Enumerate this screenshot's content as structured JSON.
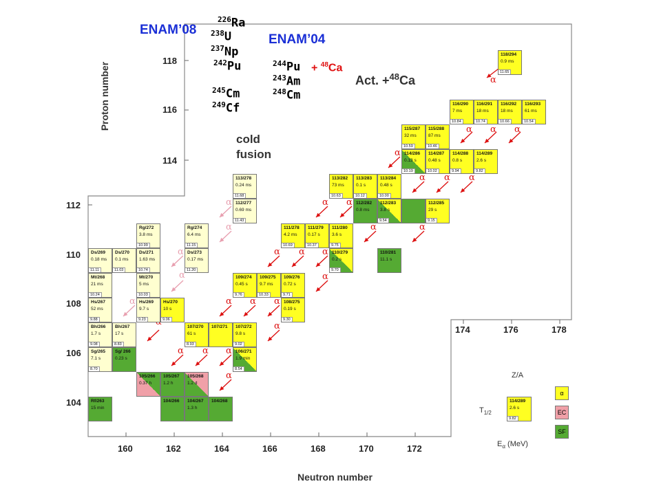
{
  "title_labels": {
    "enam08": "ENAM’08",
    "enam04": "ENAM’04"
  },
  "targets_enam08": [
    {
      "mass": "226",
      "symbol": "Ra"
    },
    {
      "mass": "238",
      "symbol": "U"
    },
    {
      "mass": "237",
      "symbol": "Np"
    },
    {
      "mass": "242",
      "symbol": "Pu"
    },
    {
      "mass": "245",
      "symbol": "Cm"
    },
    {
      "mass": "249",
      "symbol": "Cf"
    }
  ],
  "targets_enam04": [
    {
      "mass": "244",
      "symbol": "Pu"
    },
    {
      "mass": "243",
      "symbol": "Am"
    },
    {
      "mass": "248",
      "symbol": "Cm"
    }
  ],
  "projectile": {
    "prefix": "+ ",
    "mass": "48",
    "symbol": "Ca"
  },
  "act_label": {
    "prefix": "Act. +",
    "mass": "48",
    "symbol": "Ca"
  },
  "cold_fusion": {
    "line1": "cold",
    "line2": "fusion"
  },
  "axes": {
    "ylabel": "Proton number",
    "xlabel": "Neutron number",
    "y_ticks": [
      "104",
      "106",
      "108",
      "110",
      "112",
      "114",
      "116",
      "118"
    ],
    "x_ticks_bottom": [
      "160",
      "162",
      "164",
      "166",
      "168",
      "170",
      "172"
    ],
    "x_ticks_top": [
      "174",
      "176",
      "178"
    ]
  },
  "colors": {
    "alpha": "#ffff22",
    "ec": "#f0a0a8",
    "sf": "#55aa33",
    "cold": "#ffffd0",
    "arrow_red": "#dd1111",
    "arrow_pink": "#e8a0b0"
  },
  "nuclides": [
    {
      "name": "118/294",
      "hl": "0.9 ms",
      "e": "11.65",
      "type": "alpha"
    },
    {
      "name": "116/290",
      "hl": "7 ms",
      "e": "10.84",
      "type": "alpha"
    },
    {
      "name": "116/291",
      "hl": "18 ms",
      "e": "10.74",
      "type": "alpha"
    },
    {
      "name": "116/292",
      "hl": "18 ms",
      "e": "10.66",
      "type": "alpha"
    },
    {
      "name": "116/293",
      "hl": "61 ms",
      "e": "10.54",
      "type": "alpha"
    },
    {
      "name": "115/287",
      "hl": "32 ms",
      "e": "10.59",
      "type": "alpha"
    },
    {
      "name": "115/288",
      "hl": "87 ms",
      "e": "10.46",
      "type": "alpha"
    },
    {
      "name": "114/286",
      "hl": "0.13 s",
      "e": "10.19",
      "type": "alpha-sf"
    },
    {
      "name": "114/287",
      "hl": "0.48 s",
      "e": "10.02",
      "type": "alpha"
    },
    {
      "name": "114/288",
      "hl": "0.8 s",
      "e": "9.94",
      "type": "alpha"
    },
    {
      "name": "114/289",
      "hl": "2.6 s",
      "e": "9.82",
      "type": "alpha"
    },
    {
      "name": "113/278",
      "hl": "0.24 ms",
      "e": "11.68",
      "type": "cold"
    },
    {
      "name": "113/282",
      "hl": "73 ms",
      "e": "10.63",
      "type": "alpha"
    },
    {
      "name": "113/283",
      "hl": "0.1 s",
      "e": "10.12",
      "type": "alpha"
    },
    {
      "name": "113/284",
      "hl": "0.48 s",
      "e": "10.00",
      "type": "alpha"
    },
    {
      "name": "112/277",
      "hl": "0.69 ms",
      "e": "11.43",
      "type": "cold"
    },
    {
      "name": "112/282",
      "hl": "0.8 ms",
      "e": "",
      "type": "sf"
    },
    {
      "name": "112/283",
      "hl": "3.8 s",
      "e": "9.54",
      "type": "alpha-sf"
    },
    {
      "name": "",
      "hl": "",
      "e": "",
      "type": "sf"
    },
    {
      "name": "112/285",
      "hl": "29 s",
      "e": "9.15",
      "type": "alpha"
    },
    {
      "name": "Rg/272",
      "hl": "3.8 ms",
      "e": "10.99",
      "type": "cold"
    },
    {
      "name": "Rg/274",
      "hl": "6.4 ms",
      "e": "11.15",
      "type": "cold"
    },
    {
      "name": "111/278",
      "hl": "4.2 ms",
      "e": "10.69",
      "type": "alpha"
    },
    {
      "name": "111/279",
      "hl": "0.17 s",
      "e": "10.37",
      "type": "alpha"
    },
    {
      "name": "111/280",
      "hl": "3.6 s",
      "e": "9.75",
      "type": "alpha"
    },
    {
      "name": "Ds/269",
      "hl": "0.18 ms",
      "e": "11.11",
      "type": "cold"
    },
    {
      "name": "Ds/270",
      "hl": "0.1 ms",
      "e": "11.03",
      "type": "cold"
    },
    {
      "name": "Ds/271",
      "hl": "1.63 ms",
      "e": "10.74",
      "type": "cold"
    },
    {
      "name": "Ds/273",
      "hl": "0.17 ms",
      "e": "11.20",
      "type": "cold"
    },
    {
      "name": "110/279",
      "hl": "0.2 s",
      "e": "9.70",
      "type": "alpha-sf"
    },
    {
      "name": "110/281",
      "hl": "11.1 s",
      "e": "",
      "type": "sf"
    },
    {
      "name": "Mt/268",
      "hl": "21 ms",
      "e": "10.24",
      "type": "cold"
    },
    {
      "name": "Mt/270",
      "hl": "5 ms",
      "e": "10.03",
      "type": "cold"
    },
    {
      "name": "109/274",
      "hl": "0.45 s",
      "e": "9.76",
      "type": "alpha"
    },
    {
      "name": "109/275",
      "hl": "9.7 ms",
      "e": "10.33",
      "type": "alpha"
    },
    {
      "name": "109/276",
      "hl": "0.72 s",
      "e": "9.71",
      "type": "alpha"
    },
    {
      "name": "Hs/267",
      "hl": "52 ms",
      "e": "9.88",
      "type": "cold"
    },
    {
      "name": "Hs/269",
      "hl": "9.7 s",
      "e": "9.23",
      "type": "cold"
    },
    {
      "name": "Hs/270",
      "hl": "10 s",
      "e": "9.06",
      "type": "alpha"
    },
    {
      "name": "108/275",
      "hl": "0.19 s",
      "e": "9.30",
      "type": "alpha"
    },
    {
      "name": "Bh/266",
      "hl": "1.7 s",
      "e": "9.08",
      "type": "cold"
    },
    {
      "name": "Bh/267",
      "hl": "17 s",
      "e": "8.83",
      "type": "cold"
    },
    {
      "name": "107/270",
      "hl": "61 s",
      "e": "8.93",
      "type": "alpha"
    },
    {
      "name": "107/271",
      "hl": "",
      "e": "",
      "type": "alpha"
    },
    {
      "name": "107/272",
      "hl": "9.8 s",
      "e": "9.02",
      "type": "alpha"
    },
    {
      "name": "Sg/265",
      "hl": "7.1 s",
      "e": "8.70",
      "type": "cold"
    },
    {
      "name": "Sg/ 266",
      "hl": "0.23 s",
      "e": "",
      "type": "sf"
    },
    {
      "name": "106/271",
      "hl": "1.9 min",
      "e": "8.54",
      "type": "alpha-sf"
    },
    {
      "name": "105/266",
      "hl": "0.37 h",
      "e": "",
      "type": "sf-ec"
    },
    {
      "name": "105/267",
      "hl": "1.2 h",
      "e": "",
      "type": "sf"
    },
    {
      "name": "105/268",
      "hl": "1.2 d",
      "e": "",
      "type": "ec-sf"
    },
    {
      "name": "Rf/263",
      "hl": "15 min",
      "e": "",
      "type": "sf"
    },
    {
      "name": "104/266",
      "hl": "",
      "e": "",
      "type": "sf"
    },
    {
      "name": "104/267",
      "hl": "1.3 h",
      "e": "",
      "type": "sf"
    },
    {
      "name": "104/268",
      "hl": "",
      "e": "",
      "type": "sf"
    }
  ],
  "alpha_symbol": "α",
  "legend": {
    "za": "Z/A",
    "t_half": "T",
    "t_half_sub": "1/2",
    "e_alpha": "E",
    "e_alpha_sub": "α",
    "e_alpha_unit": " (MeV)",
    "example": {
      "name": "114/289",
      "hl": "2.6 s",
      "e": "9.82"
    },
    "boxes": [
      {
        "label": "α",
        "type": "alpha"
      },
      {
        "label": "EC",
        "type": "ec"
      },
      {
        "label": "SF",
        "type": "sf"
      }
    ]
  }
}
